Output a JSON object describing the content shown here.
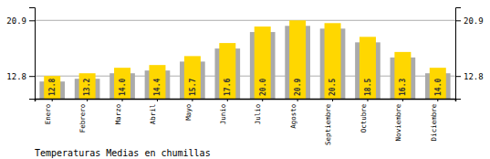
{
  "chart_data": {
    "type": "bar",
    "title": "Temperaturas Medias en chumillas",
    "categories": [
      "Enero",
      "Febrero",
      "Marzo",
      "Abril",
      "Mayo",
      "Junio",
      "Julio",
      "Agosto",
      "Septiembre",
      "Octubre",
      "Noviembre",
      "Diciembre"
    ],
    "series": [
      {
        "color": "#AAAAAA",
        "values": [
          12.0,
          12.4,
          13.2,
          13.6,
          14.9,
          16.8,
          19.2,
          20.1,
          19.7,
          17.7,
          15.5,
          13.2
        ]
      },
      {
        "color": "#FFD700",
        "values": [
          12.8,
          13.2,
          14.0,
          14.4,
          15.7,
          17.6,
          20.0,
          20.9,
          20.5,
          18.5,
          16.3,
          14.0
        ],
        "data_labels": true,
        "value_labels": [
          "12.8",
          "13.2",
          "14.0",
          "14.4",
          "15.7",
          "17.6",
          "20.0",
          "20.9",
          "20.5",
          "18.5",
          "16.3",
          "14.0"
        ]
      }
    ],
    "ylim": [
      9.5,
      22.8
    ],
    "yticks": [
      12.8,
      20.9
    ],
    "y2lim": [
      9.5,
      22.8
    ],
    "y2ticks": [
      12.8,
      20.9
    ],
    "grid": true
  }
}
